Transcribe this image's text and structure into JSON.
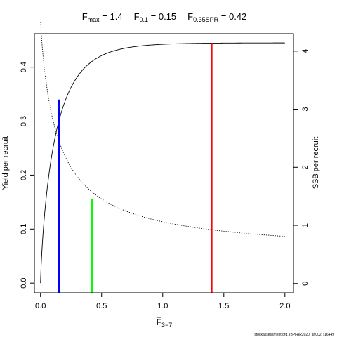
{
  "chart_data": {
    "type": "line",
    "title": {
      "fmax": {
        "sym": "F",
        "sub": "max",
        "value": "1.4"
      },
      "f01": {
        "sym": "F",
        "sub": "0.1",
        "value": "0.15"
      },
      "fspr": {
        "sym": "F",
        "sub": "0.35SPR",
        "value": "0.42"
      }
    },
    "xlabel": {
      "sym": "F",
      "sub": "3−7"
    },
    "ylabel_left": "Yield per recruit",
    "ylabel_right": "SSB per recruit",
    "xlim": [
      -0.05,
      2.07
    ],
    "ylim_left": [
      -0.018,
      0.462
    ],
    "ylim_right": [
      -0.16,
      4.3
    ],
    "x_ticks": [
      "0.0",
      "0.5",
      "1.0",
      "1.5",
      "2.0"
    ],
    "y_left_ticks": [
      "0.0",
      "0.1",
      "0.2",
      "0.3",
      "0.4"
    ],
    "y_right_ticks": [
      "0",
      "1",
      "2",
      "3",
      "4"
    ],
    "series": [
      {
        "axis": "left",
        "style": "solid",
        "max_yield": 0.445,
        "f_max": 1.4,
        "x_max": 2.0
      },
      {
        "axis": "right",
        "style": "dotted",
        "ssb_at_zero": 4.5,
        "x_max": 2.0
      }
    ],
    "reference_lines": [
      {
        "id": "f01",
        "x": 0.15,
        "y": 0.34,
        "color": "#0000ff"
      },
      {
        "id": "fspr",
        "x": 0.42,
        "y": 0.155,
        "color": "#00ff00"
      },
      {
        "id": "fmax",
        "x": 1.4,
        "y": 0.445,
        "color": "#ff0000"
      }
    ],
    "footnote": "stockassessment.org, IBPFAR2020_an002, r16449"
  }
}
